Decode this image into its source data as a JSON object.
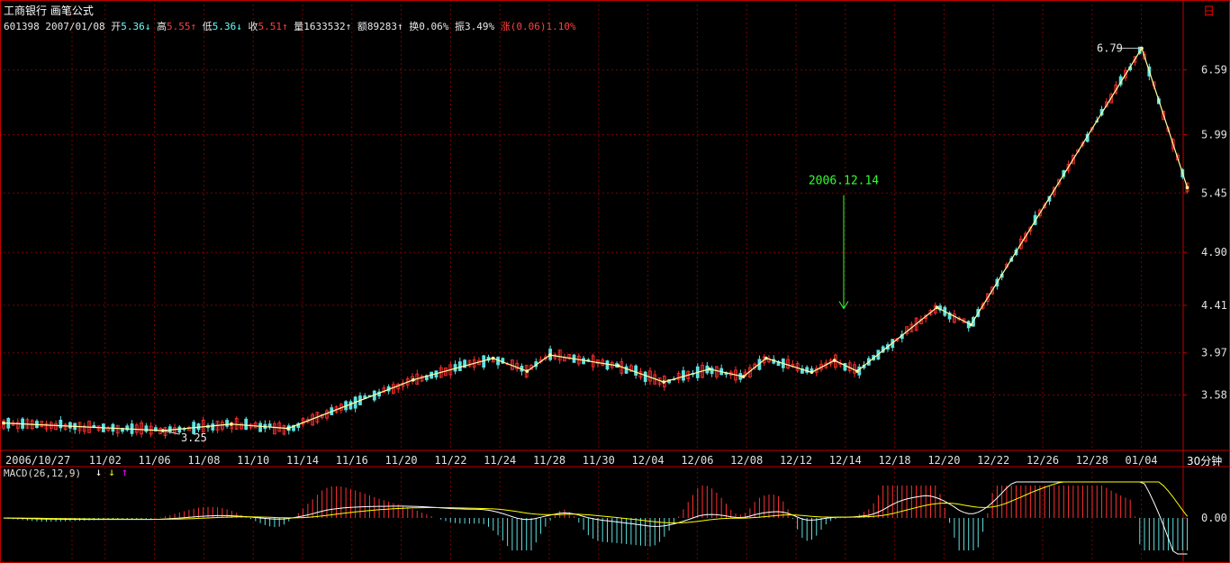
{
  "header": {
    "stock_name": "工商银行",
    "formula_name": "画笔公式",
    "code": "601398",
    "date": "2007/01/08",
    "open_label": "开",
    "open": "5.36",
    "high_label": "高",
    "high": "5.55",
    "low_label": "低",
    "low": "5.36",
    "close_label": "收",
    "close": "5.51",
    "volume_label": "量",
    "volume": "1633532",
    "amount_label": "额",
    "amount": "89283",
    "turnover_label": "换",
    "turnover": "0.06%",
    "amplitude_label": "振",
    "amplitude": "3.49%",
    "change_label": "涨",
    "change": "(0.06)1.10%"
  },
  "day_icon": "日",
  "period": "30分钟",
  "macd_label": "MACD(26,12,9)",
  "colors": {
    "up": "#ff3030",
    "down": "#60e0e0",
    "pen": "#ffffa0",
    "grid": "#7a0000",
    "axis_frame": "#c00000",
    "annotation": "#30ff30",
    "macd_dif": "#ffffff",
    "macd_dea": "#ffff00"
  },
  "chart_data": [
    {
      "type": "candlestick",
      "title": "",
      "y_ticks": [
        3.58,
        3.97,
        4.41,
        4.9,
        5.45,
        5.99,
        6.59
      ],
      "y_tick_labels": [
        "3.58",
        "3.97",
        "4.41",
        "4.90",
        "5.45",
        "5.99",
        "6.59"
      ],
      "ylim": [
        3.15,
        6.82
      ],
      "x_tick_labels": [
        "2006/10/27",
        "11/02",
        "11/06",
        "11/08",
        "11/10",
        "11/14",
        "11/16",
        "11/20",
        "11/22",
        "11/24",
        "11/28",
        "11/30",
        "12/04",
        "12/06",
        "12/08",
        "12/12",
        "12/14",
        "12/18",
        "12/20",
        "12/22",
        "12/26",
        "12/28",
        "01/04"
      ],
      "pen_line": [
        [
          0.0,
          3.32
        ],
        [
          0.14,
          3.25
        ],
        [
          0.2,
          3.31
        ],
        [
          0.25,
          3.27
        ],
        [
          0.36,
          3.72
        ],
        [
          0.43,
          3.92
        ],
        [
          0.46,
          3.8
        ],
        [
          0.48,
          3.95
        ],
        [
          0.54,
          3.85
        ],
        [
          0.58,
          3.7
        ],
        [
          0.62,
          3.82
        ],
        [
          0.65,
          3.75
        ],
        [
          0.67,
          3.92
        ],
        [
          0.71,
          3.79
        ],
        [
          0.73,
          3.9
        ],
        [
          0.75,
          3.8
        ],
        [
          0.82,
          4.39
        ],
        [
          0.85,
          4.23
        ],
        [
          1.0,
          6.79
        ],
        [
          1.04,
          5.5
        ]
      ],
      "annotations": [
        {
          "text": "6.79",
          "x": 0.985,
          "y": 6.79
        },
        {
          "text": "3.25",
          "x": 0.14,
          "y": 3.25
        },
        {
          "text": "2006.12.14",
          "date": "2006.12.14",
          "y": 5.43
        }
      ]
    },
    {
      "type": "macd",
      "title": "",
      "params": "26,12,9",
      "y_tick_labels": [
        "0.00"
      ],
      "zero": 0.0
    }
  ]
}
